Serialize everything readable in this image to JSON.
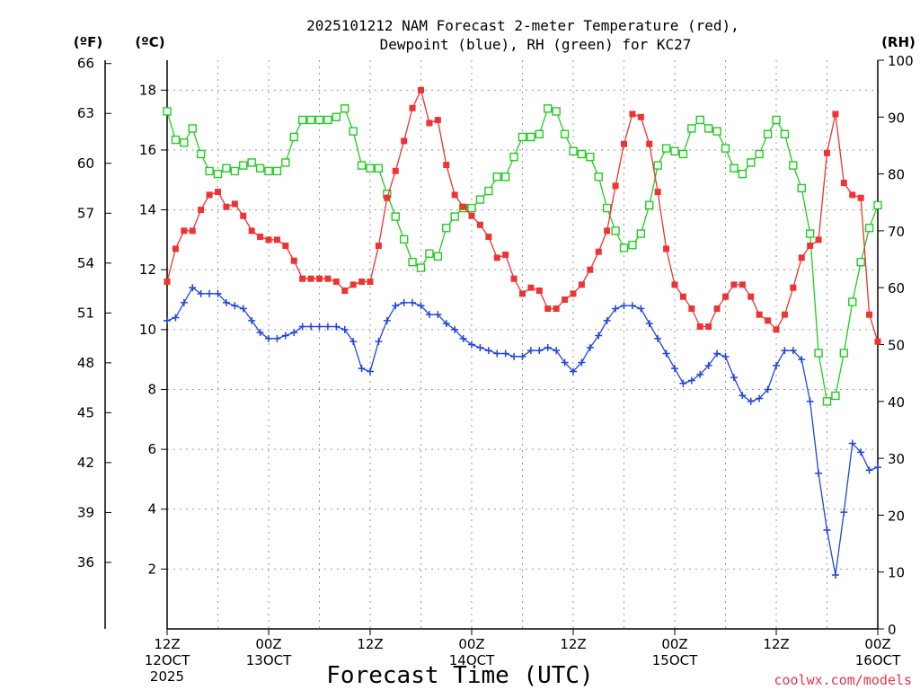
{
  "colors": {
    "temperature": "#ee3333",
    "dewpoint": "#2244dd",
    "rh": "#22cc22",
    "credit": "#e8334a",
    "grid": "#9a9a9a"
  },
  "chart_data": {
    "type": "line",
    "title_line1": "2025101212 NAM Forecast 2-meter Temperature (red),",
    "title_line2": "Dewpoint (blue), RH (green) for KC27",
    "xlabel": "Forecast Time (UTC)",
    "credit": "coolwx.com/models",
    "units": {
      "fahrenheit": "(ºF)",
      "celsius": "(ºC)",
      "rh": "(RH)"
    },
    "x_range_hours": [
      0,
      84
    ],
    "x_ticks": [
      {
        "hour": 0,
        "time": "12Z",
        "date": "12OCT",
        "year": "2025"
      },
      {
        "hour": 12,
        "time": "00Z",
        "date": "13OCT",
        "year": ""
      },
      {
        "hour": 24,
        "time": "12Z",
        "date": "",
        "year": ""
      },
      {
        "hour": 36,
        "time": "00Z",
        "date": "14OCT",
        "year": ""
      },
      {
        "hour": 48,
        "time": "12Z",
        "date": "",
        "year": ""
      },
      {
        "hour": 60,
        "time": "00Z",
        "date": "15OCT",
        "year": ""
      },
      {
        "hour": 72,
        "time": "12Z",
        "date": "",
        "year": ""
      },
      {
        "hour": 84,
        "time": "00Z",
        "date": "16OCT",
        "year": ""
      }
    ],
    "celsius_axis": {
      "range": [
        0,
        19
      ],
      "ticks": [
        2,
        4,
        6,
        8,
        10,
        12,
        14,
        16,
        18
      ]
    },
    "fahrenheit_axis": {
      "ticks": [
        36,
        39,
        42,
        45,
        48,
        51,
        54,
        57,
        60,
        63,
        66
      ]
    },
    "rh_axis": {
      "range": [
        0,
        100
      ],
      "ticks": [
        0,
        10,
        20,
        30,
        40,
        50,
        60,
        70,
        80,
        90,
        100
      ]
    },
    "series": [
      {
        "name": "2-meter Temperature",
        "units": "C",
        "values": [
          11.6,
          12.7,
          13.3,
          13.3,
          14.0,
          14.5,
          14.6,
          14.1,
          14.2,
          13.8,
          13.3,
          13.1,
          13.0,
          13.0,
          12.8,
          12.3,
          11.7,
          11.7,
          11.7,
          11.7,
          11.6,
          11.3,
          11.5,
          11.6,
          11.6,
          12.8,
          14.4,
          15.3,
          16.3,
          17.4,
          18.0,
          16.9,
          17.0,
          15.5,
          14.5,
          14.1,
          13.8,
          13.5,
          13.1,
          12.4,
          12.5,
          11.7,
          11.2,
          11.4,
          11.3,
          10.7,
          10.7,
          11.0,
          11.2,
          11.5,
          12.0,
          12.6,
          13.3,
          14.8,
          16.2,
          17.2,
          17.1,
          16.2,
          14.6,
          12.7,
          11.5,
          11.1,
          10.7,
          10.1,
          10.1,
          10.7,
          11.1,
          11.5,
          11.5,
          11.1,
          10.5,
          10.3,
          10.0,
          10.5,
          11.4,
          12.4,
          12.8,
          13.0,
          15.9,
          17.2,
          14.9,
          14.5,
          14.4,
          10.5,
          9.6
        ]
      },
      {
        "name": "Dewpoint",
        "units": "C",
        "values": [
          10.3,
          10.4,
          10.9,
          11.4,
          11.2,
          11.2,
          11.2,
          10.9,
          10.8,
          10.7,
          10.3,
          9.9,
          9.7,
          9.7,
          9.8,
          9.9,
          10.1,
          10.1,
          10.1,
          10.1,
          10.1,
          10.0,
          9.6,
          8.7,
          8.6,
          9.6,
          10.3,
          10.8,
          10.9,
          10.9,
          10.8,
          10.5,
          10.5,
          10.2,
          10.0,
          9.7,
          9.5,
          9.4,
          9.3,
          9.2,
          9.2,
          9.1,
          9.1,
          9.3,
          9.3,
          9.4,
          9.3,
          8.9,
          8.6,
          8.9,
          9.4,
          9.8,
          10.3,
          10.7,
          10.8,
          10.8,
          10.7,
          10.2,
          9.7,
          9.2,
          8.7,
          8.2,
          8.3,
          8.5,
          8.8,
          9.2,
          9.1,
          8.4,
          7.8,
          7.6,
          7.7,
          8.0,
          8.8,
          9.3,
          9.3,
          9.0,
          7.6,
          5.2,
          3.3,
          1.8,
          3.9,
          6.2,
          5.9,
          5.3,
          5.4
        ]
      },
      {
        "name": "Relative Humidity",
        "units": "%",
        "values": [
          91,
          86,
          85.5,
          88,
          83.5,
          80.5,
          80,
          81,
          80.5,
          81.5,
          82,
          81,
          80.5,
          80.5,
          82,
          86.5,
          89.5,
          89.5,
          89.5,
          89.5,
          90,
          91.5,
          87.5,
          81.5,
          81,
          81,
          76.5,
          72.5,
          68.5,
          64.5,
          63.5,
          66,
          65.5,
          70.5,
          72.5,
          74,
          74,
          75.5,
          77,
          79.5,
          79.5,
          83,
          86.5,
          86.5,
          87,
          91.5,
          91,
          87,
          84,
          83.5,
          83,
          79.5,
          74,
          70,
          67,
          67.5,
          69.5,
          74.5,
          81.5,
          84.5,
          84,
          83.5,
          88,
          89.5,
          88,
          87.5,
          84.5,
          81,
          80,
          82,
          83.5,
          87,
          89.5,
          87,
          81.5,
          77.5,
          69.5,
          48.5,
          40,
          41,
          48.5,
          57.5,
          64.5,
          70.5,
          74.5
        ]
      }
    ]
  }
}
